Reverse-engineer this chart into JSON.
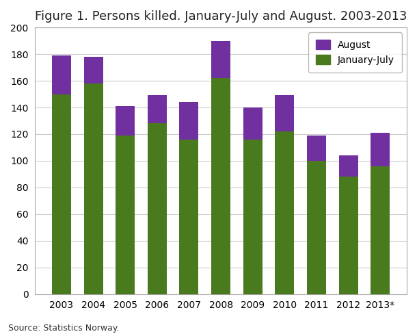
{
  "title": "Figure 1. Persons killed. January-July and August. 2003-2013",
  "years": [
    "2003",
    "2004",
    "2005",
    "2006",
    "2007",
    "2008",
    "2009",
    "2010",
    "2011",
    "2012",
    "2013*"
  ],
  "january_july": [
    150,
    158,
    119,
    128,
    116,
    162,
    116,
    122,
    100,
    88,
    96
  ],
  "august": [
    29,
    20,
    22,
    21,
    28,
    28,
    24,
    27,
    19,
    16,
    25
  ],
  "color_jan_july": "#4a7a1e",
  "color_august": "#7030a0",
  "ylim": [
    0,
    200
  ],
  "yticks": [
    0,
    20,
    40,
    60,
    80,
    100,
    120,
    140,
    160,
    180,
    200
  ],
  "legend_labels": [
    "August",
    "January-July"
  ],
  "source_text": "Source: Statistics Norway.",
  "fig_bg_color": "#ffffff",
  "plot_bg_color": "#ffffff",
  "grid_color": "#cccccc",
  "bar_width": 0.6,
  "title_fontsize": 13,
  "tick_fontsize": 10,
  "legend_fontsize": 10,
  "source_fontsize": 9
}
